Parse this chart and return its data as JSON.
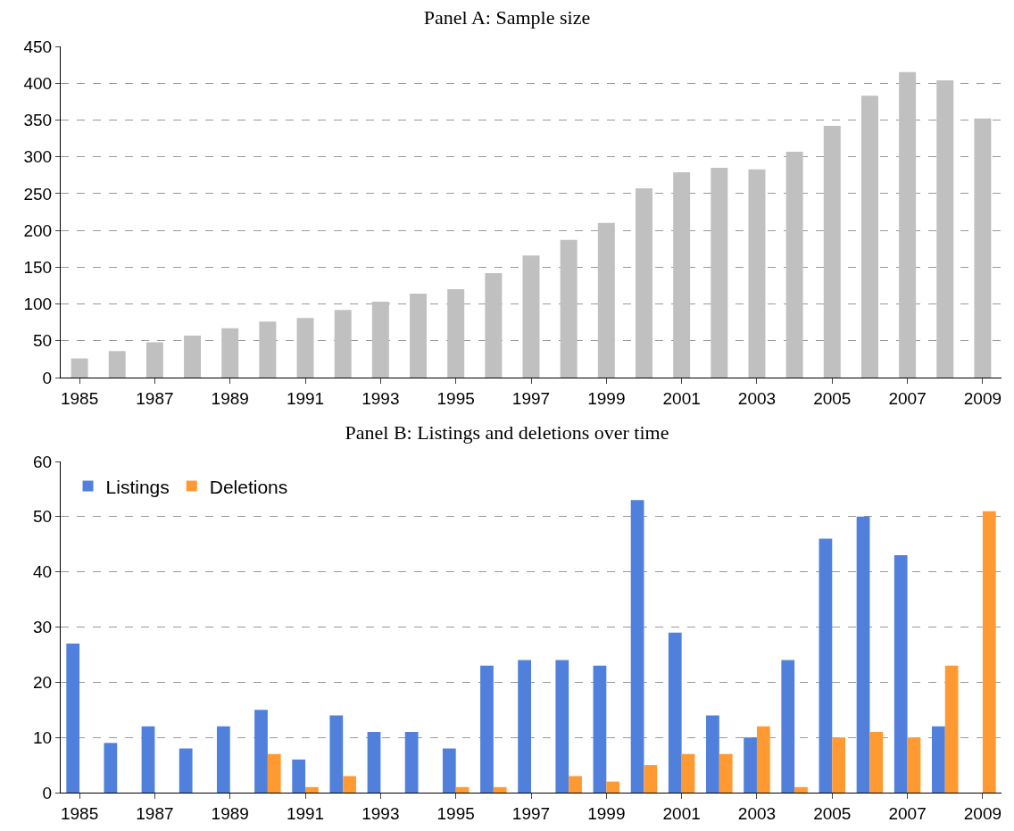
{
  "chart_data": [
    {
      "type": "bar",
      "title": "Panel A: Sample size",
      "categories": [
        "1985",
        null,
        "1987",
        null,
        "1989",
        null,
        "1991",
        null,
        "1993",
        null,
        "1995",
        null,
        "1997",
        null,
        "1999",
        null,
        "2001",
        null,
        "2003",
        null,
        "2005",
        null,
        "2007",
        null,
        "2009"
      ],
      "series": [
        {
          "color": "#c0c0c0",
          "values": [
            26,
            36,
            48,
            57,
            67,
            76,
            81,
            92,
            103,
            114,
            120,
            142,
            166,
            187,
            210,
            257,
            279,
            285,
            283,
            307,
            342,
            383,
            415,
            404,
            352
          ]
        }
      ],
      "ylim": [
        0,
        450
      ],
      "yticks": [
        0,
        50,
        100,
        150,
        200,
        250,
        300,
        350,
        400,
        450
      ],
      "grid": "y",
      "legend": false
    },
    {
      "type": "bar",
      "title": "Panel B: Listings and deletions over time",
      "categories": [
        "1985",
        null,
        "1987",
        null,
        "1989",
        null,
        "1991",
        null,
        "1993",
        null,
        "1995",
        null,
        "1997",
        null,
        "1999",
        null,
        "2001",
        null,
        "2003",
        null,
        "2005",
        null,
        "2007",
        null,
        "2009"
      ],
      "series": [
        {
          "name": "Listings",
          "color": "#5080dc",
          "values": [
            27,
            9,
            12,
            8,
            12,
            15,
            6,
            14,
            11,
            11,
            8,
            23,
            24,
            24,
            23,
            53,
            29,
            14,
            10,
            24,
            46,
            50,
            43,
            12,
            0
          ]
        },
        {
          "name": "Deletions",
          "color": "#ff9a33",
          "values": [
            0,
            0,
            0,
            0,
            0,
            7,
            1,
            3,
            0,
            0,
            1,
            1,
            0,
            3,
            2,
            5,
            7,
            7,
            12,
            1,
            10,
            11,
            10,
            23,
            51
          ]
        }
      ],
      "ylim": [
        0,
        60
      ],
      "yticks": [
        0,
        10,
        20,
        30,
        40,
        50,
        60
      ],
      "grid": "y",
      "legend": "top left"
    }
  ]
}
